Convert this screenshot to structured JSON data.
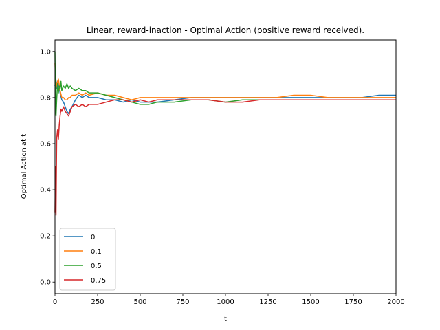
{
  "chart_data": {
    "type": "line",
    "title": "Linear, reward-inaction - Optimal Action (positive reward received).",
    "xlabel": "t",
    "ylabel": "Optimal Action at t",
    "xlim": [
      0,
      2000
    ],
    "ylim": [
      -0.05,
      1.05
    ],
    "xticks": [
      0,
      250,
      500,
      750,
      1000,
      1250,
      1500,
      1750,
      2000
    ],
    "yticks": [
      0.0,
      0.2,
      0.4,
      0.6,
      0.8,
      1.0
    ],
    "xtick_labels": [
      "0",
      "250",
      "500",
      "750",
      "1000",
      "1250",
      "1500",
      "1750",
      "2000"
    ],
    "ytick_labels": [
      "0.0",
      "0.2",
      "0.4",
      "0.6",
      "0.8",
      "1.0"
    ],
    "grid": false,
    "legend_position": "lower-left",
    "series": [
      {
        "name": "0",
        "color": "#1f77b4",
        "x": [
          0,
          5,
          10,
          20,
          30,
          40,
          50,
          60,
          70,
          80,
          90,
          100,
          120,
          140,
          160,
          180,
          200,
          250,
          300,
          350,
          400,
          450,
          500,
          550,
          600,
          700,
          800,
          900,
          1000,
          1100,
          1200,
          1300,
          1400,
          1500,
          1600,
          1700,
          1800,
          1900,
          2000
        ],
        "y": [
          0.85,
          0.88,
          0.84,
          0.86,
          0.82,
          0.79,
          0.78,
          0.76,
          0.74,
          0.73,
          0.75,
          0.76,
          0.79,
          0.81,
          0.8,
          0.81,
          0.8,
          0.8,
          0.79,
          0.79,
          0.78,
          0.79,
          0.78,
          0.78,
          0.78,
          0.79,
          0.8,
          0.8,
          0.8,
          0.8,
          0.8,
          0.8,
          0.8,
          0.8,
          0.8,
          0.8,
          0.8,
          0.81,
          0.81
        ]
      },
      {
        "name": "0.1",
        "color": "#ff7f0e",
        "x": [
          0,
          5,
          10,
          20,
          30,
          40,
          50,
          60,
          70,
          80,
          90,
          100,
          120,
          140,
          160,
          180,
          200,
          250,
          300,
          350,
          400,
          450,
          500,
          550,
          600,
          700,
          800,
          900,
          1000,
          1100,
          1200,
          1300,
          1400,
          1500,
          1600,
          1700,
          1800,
          1900,
          2000
        ],
        "y": [
          0.95,
          0.84,
          0.86,
          0.88,
          0.83,
          0.8,
          0.8,
          0.79,
          0.79,
          0.8,
          0.8,
          0.81,
          0.81,
          0.82,
          0.81,
          0.82,
          0.81,
          0.82,
          0.81,
          0.81,
          0.8,
          0.79,
          0.8,
          0.8,
          0.8,
          0.8,
          0.8,
          0.8,
          0.8,
          0.8,
          0.8,
          0.8,
          0.81,
          0.81,
          0.8,
          0.8,
          0.8,
          0.8,
          0.8
        ]
      },
      {
        "name": "0.5",
        "color": "#2ca02c",
        "x": [
          0,
          3,
          6,
          10,
          15,
          20,
          25,
          30,
          35,
          40,
          50,
          60,
          70,
          80,
          90,
          100,
          120,
          140,
          160,
          180,
          200,
          250,
          300,
          350,
          400,
          450,
          500,
          550,
          600,
          700,
          800,
          900,
          1000,
          1100,
          1200,
          1300,
          1400,
          1500,
          1600,
          1700,
          1800,
          1900,
          2000
        ],
        "y": [
          1.0,
          0.75,
          0.72,
          0.79,
          0.86,
          0.82,
          0.85,
          0.84,
          0.87,
          0.83,
          0.85,
          0.84,
          0.86,
          0.84,
          0.85,
          0.84,
          0.83,
          0.84,
          0.83,
          0.83,
          0.82,
          0.82,
          0.81,
          0.8,
          0.79,
          0.78,
          0.77,
          0.77,
          0.78,
          0.78,
          0.79,
          0.79,
          0.78,
          0.79,
          0.79,
          0.79,
          0.79,
          0.79,
          0.79,
          0.79,
          0.79,
          0.79,
          0.79
        ]
      },
      {
        "name": "0.75",
        "color": "#d62728",
        "x": [
          0,
          3,
          6,
          10,
          15,
          20,
          25,
          30,
          35,
          40,
          50,
          60,
          70,
          80,
          90,
          100,
          120,
          140,
          160,
          180,
          200,
          250,
          300,
          350,
          400,
          450,
          500,
          550,
          600,
          700,
          800,
          900,
          1000,
          1100,
          1200,
          1300,
          1400,
          1500,
          1600,
          1700,
          1800,
          1900,
          2000
        ],
        "y": [
          0.3,
          0.5,
          0.29,
          0.62,
          0.66,
          0.62,
          0.68,
          0.72,
          0.75,
          0.74,
          0.76,
          0.74,
          0.73,
          0.72,
          0.74,
          0.76,
          0.77,
          0.76,
          0.77,
          0.76,
          0.77,
          0.77,
          0.78,
          0.79,
          0.79,
          0.78,
          0.79,
          0.78,
          0.79,
          0.79,
          0.79,
          0.79,
          0.78,
          0.78,
          0.79,
          0.79,
          0.79,
          0.79,
          0.79,
          0.79,
          0.79,
          0.79,
          0.79
        ]
      }
    ]
  }
}
